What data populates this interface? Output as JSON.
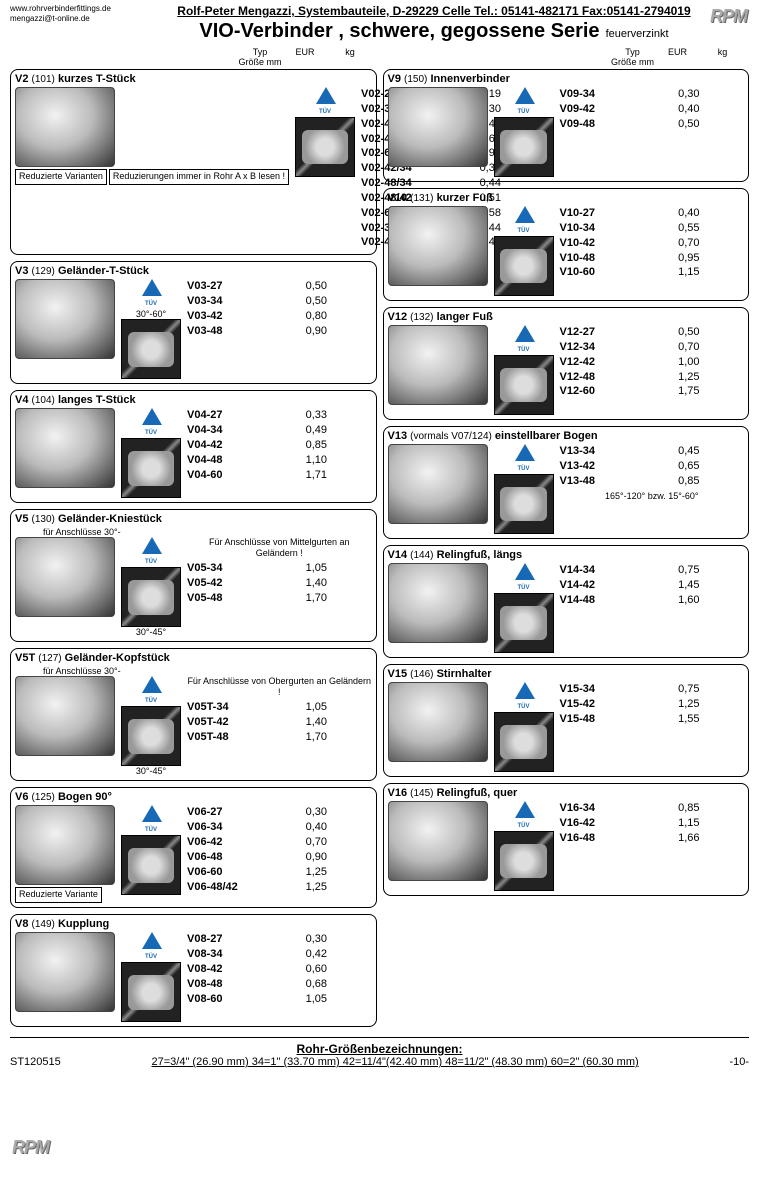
{
  "company_line": "Rolf-Peter Mengazzi, Systembauteile, D-29229 Celle  Tel.: 05141-482171  Fax:05141-2794019",
  "website": "www.rohrverbinderfittings.de",
  "email": "mengazzi@t-online.de",
  "logo_text": "RPM",
  "title_prefix": "VIO-",
  "title_rest": "Verbinder , schwere, gegossene Serie",
  "title_suffix": "feuerverzinkt",
  "col_headers": {
    "typ": "Typ",
    "size": "Größe mm",
    "eur": "EUR",
    "kg": "kg"
  },
  "left": [
    {
      "code": "V2",
      "num": "(101)",
      "name": "kurzes T-Stück",
      "extra_boxes": [
        "Reduzierte Varianten",
        "Reduzierungen immer in Rohr A x B lesen !"
      ],
      "rows": [
        {
          "typ": "V02-27",
          "kg": "0,19"
        },
        {
          "typ": "V02-34",
          "kg": "0,30"
        },
        {
          "typ": "V02-42",
          "kg": "0,46"
        },
        {
          "typ": "V02-48",
          "kg": "0,69"
        },
        {
          "typ": "V02-60",
          "kg": "0,96"
        },
        {
          "typ": "V02-42/34",
          "kg": "0,38"
        },
        {
          "typ": "V02-48/34",
          "kg": "0,44"
        },
        {
          "typ": "V02-48/42",
          "kg": "0,51"
        },
        {
          "typ": "V02-60/48",
          "kg": "0,58"
        },
        {
          "typ": "V02-34/42",
          "kg": "0,44"
        },
        {
          "typ": "V02-42/48",
          "kg": "0,44"
        }
      ]
    },
    {
      "code": "V3",
      "num": "(129)",
      "name": "Geländer-T-Stück",
      "aux_note_top": "30°-60°",
      "rows": [
        {
          "typ": "V03-27",
          "kg": "0,50"
        },
        {
          "typ": "V03-34",
          "kg": "0,50"
        },
        {
          "typ": "V03-42",
          "kg": "0,80"
        },
        {
          "typ": "V03-48",
          "kg": "0,90"
        }
      ]
    },
    {
      "code": "V4",
      "num": "(104)",
      "name": "langes T-Stück",
      "rows": [
        {
          "typ": "V04-27",
          "kg": "0,33"
        },
        {
          "typ": "V04-34",
          "kg": "0,49"
        },
        {
          "typ": "V04-42",
          "kg": "0,85"
        },
        {
          "typ": "V04-48",
          "kg": "1,10"
        },
        {
          "typ": "V04-60",
          "kg": "1,71"
        }
      ]
    },
    {
      "code": "V5",
      "num": "(130)",
      "name": "Geländer-Kniestück",
      "subtitle": "für Anschlüsse 30°-",
      "note": "Für Anschlüsse von Mittelgurten an Geländern !",
      "aux_note": "30°-45°",
      "rows": [
        {
          "typ": "V05-34",
          "kg": "1,05"
        },
        {
          "typ": "V05-42",
          "kg": "1,40"
        },
        {
          "typ": "V05-48",
          "kg": "1,70"
        }
      ]
    },
    {
      "code": "V5T",
      "num": "(127)",
      "name": "Geländer-Kopfstück",
      "subtitle": "für Anschlüsse 30°-",
      "note": "Für Anschlüsse von Obergurten an Geländern !",
      "aux_note": "30°-45°",
      "rows": [
        {
          "typ": "V05T-34",
          "kg": "1,05"
        },
        {
          "typ": "V05T-42",
          "kg": "1,40"
        },
        {
          "typ": "V05T-48",
          "kg": "1,70"
        }
      ]
    },
    {
      "code": "V6",
      "num": "(125)",
      "name": "Bogen 90°",
      "extra_boxes": [
        "Reduzierte Variante"
      ],
      "rows": [
        {
          "typ": "V06-27",
          "kg": "0,30"
        },
        {
          "typ": "V06-34",
          "kg": "0,40"
        },
        {
          "typ": "V06-42",
          "kg": "0,70"
        },
        {
          "typ": "V06-48",
          "kg": "0,90"
        },
        {
          "typ": "V06-60",
          "kg": "1,25"
        },
        {
          "typ": "V06-48/42",
          "kg": "1,25"
        }
      ]
    },
    {
      "code": "V8",
      "num": "(149)",
      "name": "Kupplung",
      "rows": [
        {
          "typ": "V08-27",
          "kg": "0,30"
        },
        {
          "typ": "V08-34",
          "kg": "0,42"
        },
        {
          "typ": "V08-42",
          "kg": "0,60"
        },
        {
          "typ": "V08-48",
          "kg": "0,68"
        },
        {
          "typ": "V08-60",
          "kg": "1,05"
        }
      ]
    }
  ],
  "right": [
    {
      "code": "V9",
      "num": "(150)",
      "name": "Innenverbinder",
      "rows": [
        {
          "typ": "V09-34",
          "kg": "0,30"
        },
        {
          "typ": "V09-42",
          "kg": "0,40"
        },
        {
          "typ": "V09-48",
          "kg": "0,50"
        }
      ]
    },
    {
      "code": "V10",
      "num": "(131)",
      "name": "kurzer Fuß",
      "rows": [
        {
          "typ": "V10-27",
          "kg": "0,40"
        },
        {
          "typ": "V10-34",
          "kg": "0,55"
        },
        {
          "typ": "V10-42",
          "kg": "0,70"
        },
        {
          "typ": "V10-48",
          "kg": "0,95"
        },
        {
          "typ": "V10-60",
          "kg": "1,15"
        }
      ]
    },
    {
      "code": "V12",
      "num": "(132)",
      "name": "langer Fuß",
      "rows": [
        {
          "typ": "V12-27",
          "kg": "0,50"
        },
        {
          "typ": "V12-34",
          "kg": "0,70"
        },
        {
          "typ": "V12-42",
          "kg": "1,00"
        },
        {
          "typ": "V12-48",
          "kg": "1,25"
        },
        {
          "typ": "V12-60",
          "kg": "1,75"
        }
      ]
    },
    {
      "code": "V13",
      "num": "(vormals V07/124)",
      "name": "einstellbarer Bogen",
      "bottom_note": "165°-120° bzw. 15°-60°",
      "rows": [
        {
          "typ": "V13-34",
          "kg": "0,45"
        },
        {
          "typ": "V13-42",
          "kg": "0,65"
        },
        {
          "typ": "V13-48",
          "kg": "0,85"
        }
      ]
    },
    {
      "code": "V14",
      "num": "(144)",
      "name": "Relingfuß, längs",
      "rows": [
        {
          "typ": "V14-34",
          "kg": "0,75"
        },
        {
          "typ": "V14-42",
          "kg": "1,45"
        },
        {
          "typ": "V14-48",
          "kg": "1,60"
        }
      ]
    },
    {
      "code": "V15",
      "num": "(146)",
      "name": "Stirnhalter",
      "rows": [
        {
          "typ": "V15-34",
          "kg": "0,75"
        },
        {
          "typ": "V15-42",
          "kg": "1,25"
        },
        {
          "typ": "V15-48",
          "kg": "1,55"
        }
      ]
    },
    {
      "code": "V16",
      "num": "(145)",
      "name": "Relingfuß, quer",
      "rows": [
        {
          "typ": "V16-34",
          "kg": "0,85"
        },
        {
          "typ": "V16-42",
          "kg": "1,15"
        },
        {
          "typ": "V16-48",
          "kg": "1,66"
        }
      ]
    }
  ],
  "footer": {
    "title": "Rohr-Größenbezeichnungen:",
    "line": "27=3/4\" (26.90 mm)  34=1\" (33.70 mm)  42=11/4\"(42.40 mm)  48=11/2\" (48.30 mm)  60=2\" (60.30 mm)",
    "doc": "ST120515",
    "page": "-10-"
  }
}
